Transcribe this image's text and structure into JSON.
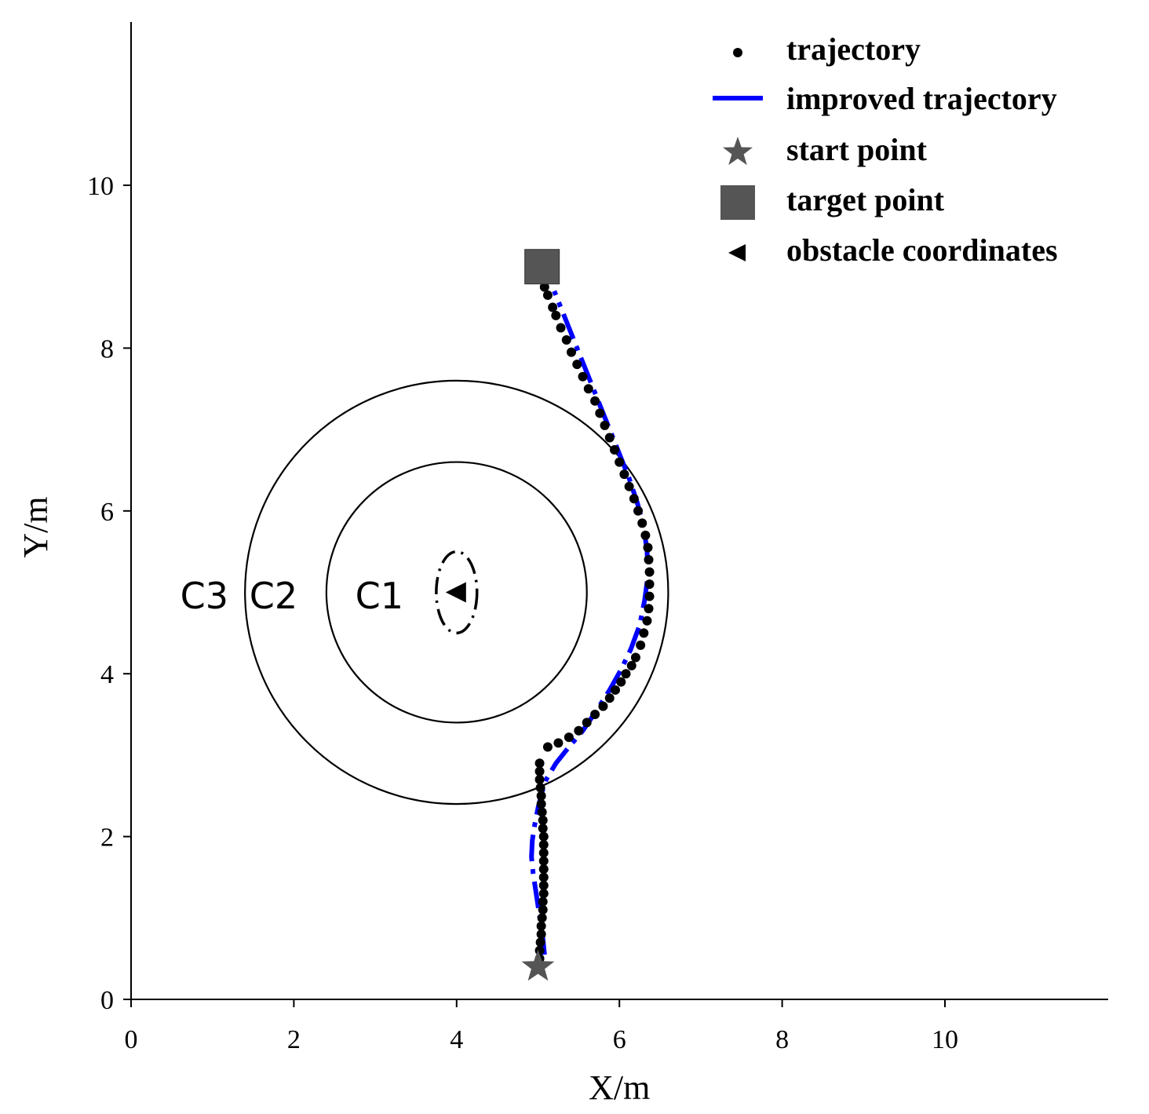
{
  "chart_data": {
    "type": "scatter",
    "xlabel": "X/m",
    "ylabel": "Y/m",
    "xlim": [
      0,
      12
    ],
    "ylim": [
      0,
      12
    ],
    "xticks": [
      0,
      2,
      4,
      6,
      8,
      10
    ],
    "yticks": [
      0,
      2,
      4,
      6,
      8,
      10
    ],
    "grid": false,
    "legend_position": "top-right",
    "legend": [
      {
        "name": "trajectory",
        "marker": "dot"
      },
      {
        "name": "improved trajectory",
        "marker": "dashed-line"
      },
      {
        "name": "start point",
        "marker": "star"
      },
      {
        "name": "target point",
        "marker": "square"
      },
      {
        "name": "obstacle coordinates",
        "marker": "triangle-left"
      }
    ],
    "start_point": {
      "x": 5.0,
      "y": 0.4
    },
    "target_point": {
      "x": 5.05,
      "y": 9.0
    },
    "obstacle": {
      "x": 4.0,
      "y": 5.0
    },
    "obstacle_ellipse": {
      "cx": 4.0,
      "cy": 5.0,
      "rx": 0.25,
      "ry": 0.5
    },
    "circles": [
      {
        "label": "C1",
        "cx": 4.0,
        "cy": 5.0,
        "r": 1.6
      },
      {
        "label": "C2",
        "cx": 4.0,
        "cy": 5.0,
        "r": 2.6
      },
      {
        "label": "C3",
        "cx": 4.0,
        "cy": 5.0,
        "r": null
      }
    ],
    "series": [
      {
        "name": "trajectory",
        "color": "#000000",
        "points": [
          [
            5.02,
            0.5
          ],
          [
            5.02,
            0.6
          ],
          [
            5.03,
            0.7
          ],
          [
            5.04,
            0.8
          ],
          [
            5.04,
            0.9
          ],
          [
            5.05,
            1.0
          ],
          [
            5.06,
            1.1
          ],
          [
            5.06,
            1.2
          ],
          [
            5.07,
            1.3
          ],
          [
            5.07,
            1.4
          ],
          [
            5.07,
            1.5
          ],
          [
            5.07,
            1.6
          ],
          [
            5.07,
            1.7
          ],
          [
            5.07,
            1.8
          ],
          [
            5.07,
            1.9
          ],
          [
            5.07,
            2.0
          ],
          [
            5.06,
            2.1
          ],
          [
            5.06,
            2.2
          ],
          [
            5.05,
            2.3
          ],
          [
            5.04,
            2.4
          ],
          [
            5.04,
            2.5
          ],
          [
            5.03,
            2.6
          ],
          [
            5.02,
            2.7
          ],
          [
            5.02,
            2.8
          ],
          [
            5.02,
            2.9
          ],
          [
            5.12,
            3.1
          ],
          [
            5.25,
            3.15
          ],
          [
            5.38,
            3.22
          ],
          [
            5.5,
            3.3
          ],
          [
            5.6,
            3.4
          ],
          [
            5.7,
            3.5
          ],
          [
            5.8,
            3.6
          ],
          [
            5.88,
            3.7
          ],
          [
            5.95,
            3.8
          ],
          [
            6.02,
            3.9
          ],
          [
            6.08,
            4.0
          ],
          [
            6.15,
            4.1
          ],
          [
            6.2,
            4.2
          ],
          [
            6.26,
            4.35
          ],
          [
            6.3,
            4.5
          ],
          [
            6.34,
            4.65
          ],
          [
            6.36,
            4.8
          ],
          [
            6.37,
            4.95
          ],
          [
            6.37,
            5.1
          ],
          [
            6.37,
            5.25
          ],
          [
            6.36,
            5.4
          ],
          [
            6.35,
            5.55
          ],
          [
            6.32,
            5.7
          ],
          [
            6.28,
            5.85
          ],
          [
            6.23,
            6.0
          ],
          [
            6.18,
            6.15
          ],
          [
            6.12,
            6.3
          ],
          [
            6.06,
            6.45
          ],
          [
            6.0,
            6.6
          ],
          [
            5.94,
            6.75
          ],
          [
            5.88,
            6.9
          ],
          [
            5.82,
            7.05
          ],
          [
            5.76,
            7.2
          ],
          [
            5.7,
            7.35
          ],
          [
            5.62,
            7.5
          ],
          [
            5.55,
            7.65
          ],
          [
            5.48,
            7.8
          ],
          [
            5.41,
            7.95
          ],
          [
            5.35,
            8.1
          ],
          [
            5.28,
            8.25
          ],
          [
            5.22,
            8.4
          ],
          [
            5.18,
            8.5
          ],
          [
            5.12,
            8.65
          ],
          [
            5.08,
            8.75
          ]
        ]
      },
      {
        "name": "improved trajectory",
        "color": "#0000ff",
        "points": [
          [
            5.08,
            0.55
          ],
          [
            5.06,
            0.75
          ],
          [
            5.03,
            0.95
          ],
          [
            5.0,
            1.15
          ],
          [
            4.97,
            1.35
          ],
          [
            4.94,
            1.55
          ],
          [
            4.92,
            1.75
          ],
          [
            4.93,
            1.95
          ],
          [
            4.96,
            2.15
          ],
          [
            5.0,
            2.35
          ],
          [
            5.05,
            2.55
          ],
          [
            5.1,
            2.7
          ],
          [
            5.22,
            2.9
          ],
          [
            5.38,
            3.1
          ],
          [
            5.55,
            3.3
          ],
          [
            5.72,
            3.55
          ],
          [
            5.88,
            3.8
          ],
          [
            6.02,
            4.05
          ],
          [
            6.14,
            4.3
          ],
          [
            6.25,
            4.6
          ],
          [
            6.31,
            4.9
          ],
          [
            6.35,
            5.2
          ],
          [
            6.34,
            5.5
          ],
          [
            6.3,
            5.8
          ],
          [
            6.22,
            6.1
          ],
          [
            6.12,
            6.4
          ],
          [
            6.0,
            6.7
          ],
          [
            5.88,
            7.0
          ],
          [
            5.76,
            7.3
          ],
          [
            5.64,
            7.6
          ],
          [
            5.52,
            7.9
          ],
          [
            5.4,
            8.2
          ],
          [
            5.3,
            8.45
          ],
          [
            5.2,
            8.7
          ]
        ]
      }
    ]
  },
  "ring_labels": {
    "c1": "C1",
    "c2": "C2",
    "c3": "C3"
  }
}
